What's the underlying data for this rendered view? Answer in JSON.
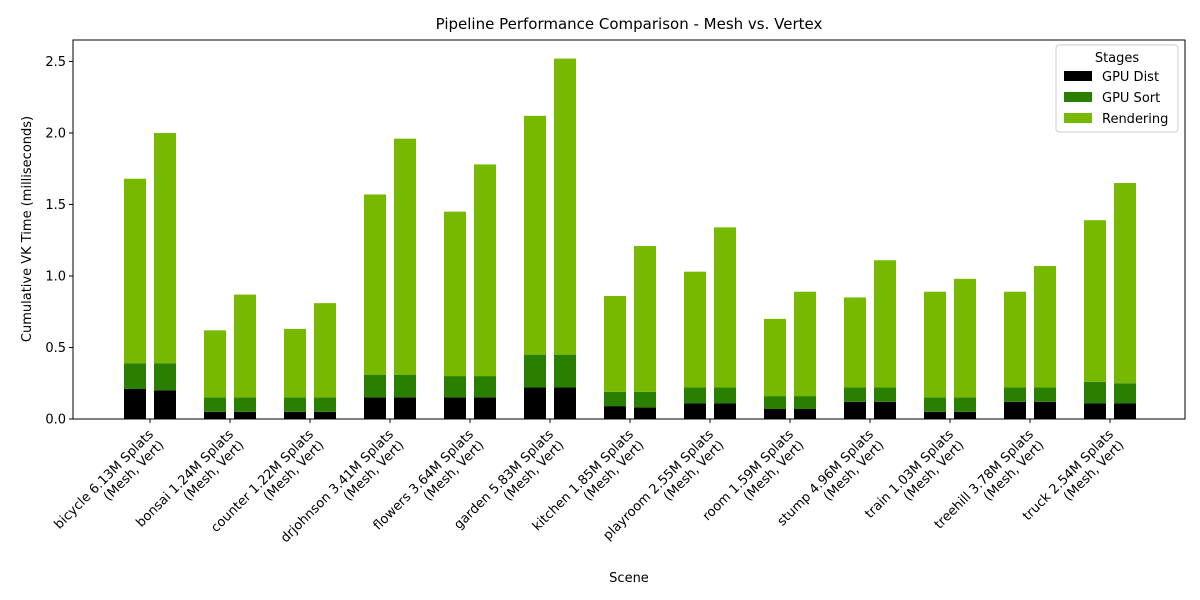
{
  "chart_data": {
    "type": "bar",
    "stacked": true,
    "title": "Pipeline Performance Comparison - Mesh vs. Vertex",
    "xlabel": "Scene",
    "ylabel": "Cumulative VK Time (milliseconds)",
    "ylim": [
      0,
      2.65
    ],
    "yticks": [
      "0.0",
      "0.5",
      "1.0",
      "1.5",
      "2.0",
      "2.5"
    ],
    "grid": false,
    "legend": {
      "title": "Stages",
      "placement": "top-right"
    },
    "pair_labels": [
      "Mesh",
      "Vert"
    ],
    "categories": [
      {
        "line1": "bicycle 6.13M Splats",
        "line2": "(Mesh, Vert)"
      },
      {
        "line1": "bonsai 1.24M Splats",
        "line2": "(Mesh, Vert)"
      },
      {
        "line1": "counter 1.22M Splats",
        "line2": "(Mesh, Vert)"
      },
      {
        "line1": "drjohnson 3.41M Splats",
        "line2": "(Mesh, Vert)"
      },
      {
        "line1": "flowers 3.64M Splats",
        "line2": "(Mesh, Vert)"
      },
      {
        "line1": "garden 5.83M Splats",
        "line2": "(Mesh, Vert)"
      },
      {
        "line1": "kitchen 1.85M Splats",
        "line2": "(Mesh, Vert)"
      },
      {
        "line1": "playroom 2.55M Splats",
        "line2": "(Mesh, Vert)"
      },
      {
        "line1": "room 1.59M Splats",
        "line2": "(Mesh, Vert)"
      },
      {
        "line1": "stump 4.96M Splats",
        "line2": "(Mesh, Vert)"
      },
      {
        "line1": "train 1.03M Splats",
        "line2": "(Mesh, Vert)"
      },
      {
        "line1": "treehill 3.78M Splats",
        "line2": "(Mesh, Vert)"
      },
      {
        "line1": "truck 2.54M Splats",
        "line2": "(Mesh, Vert)"
      }
    ],
    "series": [
      {
        "name": "GPU Dist",
        "color": "#000000",
        "mesh": [
          0.21,
          0.05,
          0.05,
          0.15,
          0.15,
          0.22,
          0.09,
          0.11,
          0.07,
          0.12,
          0.05,
          0.12,
          0.11
        ],
        "vert": [
          0.2,
          0.05,
          0.05,
          0.15,
          0.15,
          0.22,
          0.08,
          0.11,
          0.07,
          0.12,
          0.05,
          0.12,
          0.11
        ]
      },
      {
        "name": "GPU Sort",
        "color": "#2a7e00",
        "mesh": [
          0.18,
          0.1,
          0.1,
          0.16,
          0.15,
          0.23,
          0.1,
          0.11,
          0.09,
          0.1,
          0.1,
          0.1,
          0.15
        ],
        "vert": [
          0.19,
          0.1,
          0.1,
          0.16,
          0.15,
          0.23,
          0.11,
          0.11,
          0.09,
          0.1,
          0.1,
          0.1,
          0.14
        ]
      },
      {
        "name": "Rendering",
        "color": "#76b900",
        "mesh": [
          1.29,
          0.47,
          0.48,
          1.26,
          1.15,
          1.67,
          0.67,
          0.81,
          0.54,
          0.63,
          0.74,
          0.67,
          1.13
        ],
        "vert": [
          1.61,
          0.72,
          0.66,
          1.65,
          1.48,
          2.07,
          1.02,
          1.12,
          0.73,
          0.89,
          0.83,
          0.85,
          1.4
        ]
      }
    ]
  }
}
